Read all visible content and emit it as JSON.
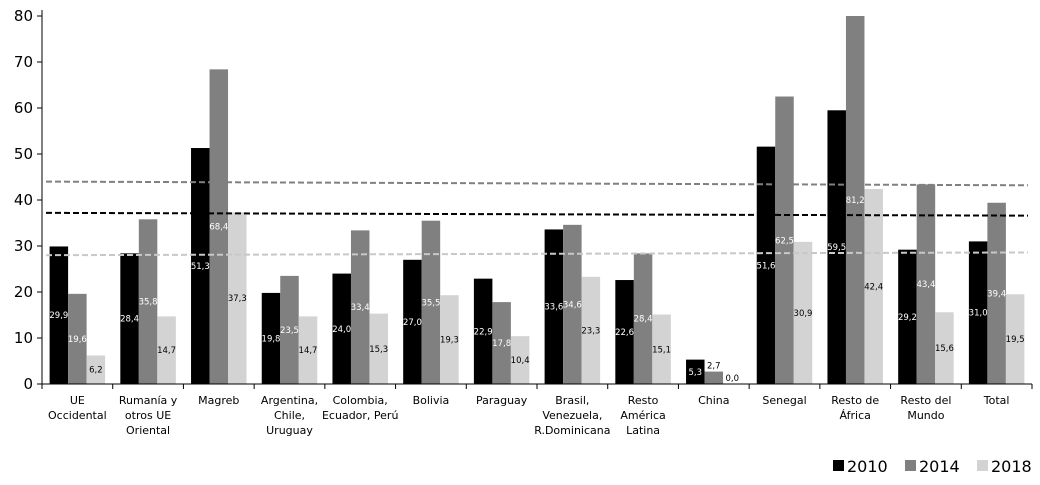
{
  "chart_data": {
    "type": "bar",
    "title": "",
    "xlabel": "",
    "ylabel": "",
    "ylim": [
      0,
      80
    ],
    "yticks": [
      0,
      10,
      20,
      30,
      40,
      50,
      60,
      70,
      80
    ],
    "grid": false,
    "legend_position": "bottom-right",
    "categories": [
      [
        "UE",
        "Occidental"
      ],
      [
        "Rumanía y",
        "otros UE",
        "Oriental"
      ],
      [
        "Magreb"
      ],
      [
        "Argentina,",
        "Chile,",
        "Uruguay"
      ],
      [
        "Colombia,",
        "Ecuador, Perú"
      ],
      [
        "Bolivia"
      ],
      [
        "Paraguay"
      ],
      [
        "Brasil,",
        "Venezuela,",
        "R.Dominicana"
      ],
      [
        "Resto",
        "América",
        "Latina"
      ],
      [
        "China"
      ],
      [
        "Senegal"
      ],
      [
        "Resto de",
        "África"
      ],
      [
        "Resto del",
        "Mundo"
      ],
      [
        "Total"
      ]
    ],
    "series": [
      {
        "name": "2010",
        "color": "#000000",
        "values": [
          29.9,
          28.4,
          51.3,
          19.8,
          24.0,
          27.0,
          22.9,
          33.6,
          22.6,
          5.3,
          51.6,
          59.5,
          29.2,
          31.0
        ],
        "labels": [
          "29,9",
          "28,4",
          "51,3",
          "19,8",
          "24,0",
          "27,0",
          "22,9",
          "33,6",
          "22,6",
          "5,3",
          "51,6",
          "59,5",
          "29,2",
          "31,0"
        ]
      },
      {
        "name": "2014",
        "color": "#808080",
        "values": [
          19.6,
          35.8,
          68.4,
          23.5,
          33.4,
          35.5,
          17.8,
          34.6,
          28.4,
          2.7,
          62.5,
          81.2,
          43.4,
          39.4
        ],
        "labels": [
          "19,6",
          "35,8",
          "68,4",
          "23,5",
          "33,4",
          "35,5",
          "17,8",
          "34,6",
          "28,4",
          "2,7",
          "62,5",
          "81,2",
          "43,4",
          "39,4"
        ]
      },
      {
        "name": "2018",
        "color": "#d3d3d3",
        "values": [
          6.2,
          14.7,
          37.3,
          14.7,
          15.3,
          19.3,
          10.4,
          23.3,
          15.1,
          0.0,
          30.9,
          42.4,
          15.6,
          19.5
        ],
        "labels": [
          "6,2",
          "14,7",
          "37,3",
          "14,7",
          "15,3",
          "19,3",
          "10,4",
          "23,3",
          "15,1",
          "0,0",
          "30,9",
          "42,4",
          "15,6",
          "19,5"
        ]
      }
    ],
    "reference_lines": [
      {
        "series": "2014",
        "color": "#808080",
        "start": 44.0,
        "end": 43.2
      },
      {
        "series": "2010",
        "color": "#000000",
        "start": 37.2,
        "end": 36.6
      },
      {
        "series": "2018",
        "color": "#c8c8c8",
        "start": 28.0,
        "end": 28.6
      }
    ]
  }
}
